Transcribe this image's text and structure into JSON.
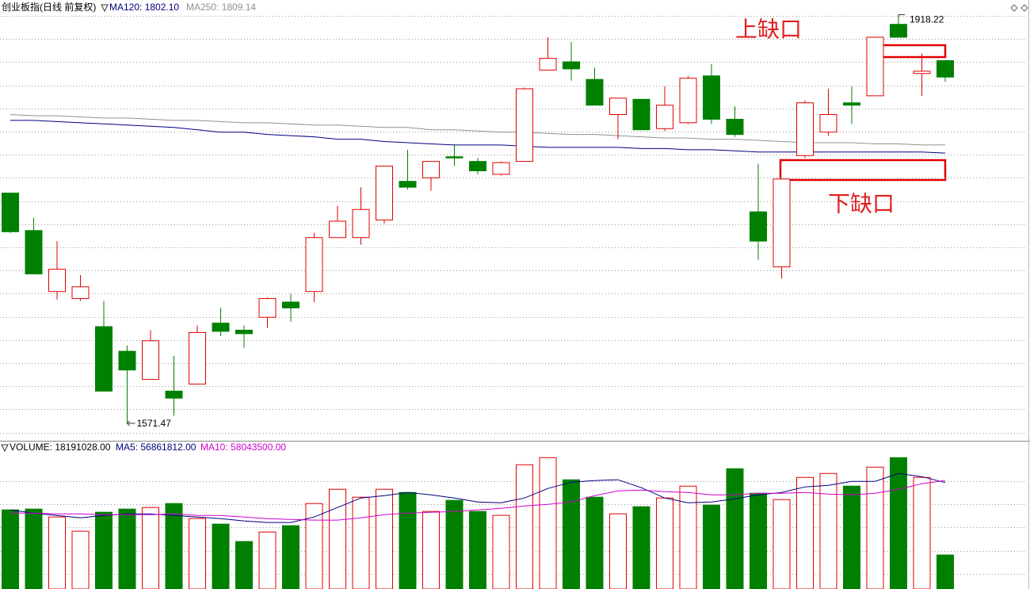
{
  "chart_data": [
    {
      "type": "candlestick",
      "title": "创业板指(日线 前复权)",
      "open": [
        1768,
        1736,
        1684,
        1678,
        1654,
        1633,
        1609,
        1599,
        1605,
        1657,
        1651,
        1662,
        1675,
        1684,
        1730,
        1730,
        1745,
        1778,
        1781,
        1799,
        1795,
        1784,
        1795,
        1873,
        1880,
        1865,
        1835,
        1848,
        1823,
        1828,
        1868,
        1831,
        1752,
        1705,
        1800,
        1820,
        1845,
        1851,
        1912,
        1870,
        1881
      ],
      "high": [
        1768,
        1747,
        1727,
        1698,
        1676,
        1638,
        1651,
        1629,
        1655,
        1670,
        1655,
        1679,
        1682,
        1734,
        1757,
        1773,
        1791,
        1805,
        1795,
        1810,
        1798,
        1795,
        1858,
        1901,
        1897,
        1875,
        1849,
        1848,
        1859,
        1868,
        1878,
        1842,
        1793,
        1780,
        1847,
        1857,
        1859,
        1901,
        1918.22,
        1887,
        1881
      ],
      "low": [
        1734,
        1699,
        1677,
        1676,
        1599,
        1571.47,
        1609,
        1578,
        1605,
        1646,
        1636,
        1653,
        1658,
        1675,
        1730,
        1724,
        1742,
        1771,
        1770,
        1791,
        1784,
        1783,
        1795,
        1873,
        1864,
        1843,
        1814,
        1822,
        1821,
        1827,
        1827,
        1816,
        1711,
        1695,
        1798,
        1817,
        1827,
        1851,
        1901,
        1851,
        1863
      ],
      "close": [
        1735,
        1699,
        1703,
        1688,
        1599,
        1617,
        1642,
        1593,
        1649,
        1650,
        1648,
        1678,
        1670,
        1730,
        1744,
        1754,
        1791,
        1773,
        1795,
        1798,
        1787,
        1794,
        1857,
        1883,
        1874,
        1843,
        1849,
        1822,
        1843,
        1866,
        1831,
        1818,
        1727,
        1780,
        1845,
        1835,
        1843,
        1901,
        1901,
        1872,
        1867
      ],
      "up_color": "#e00000",
      "down_color": "#008000",
      "series": [
        {
          "name": "MA120: 1802.10",
          "color": "#000080",
          "values": [
            1830,
            1830,
            1829,
            1828,
            1827,
            1826,
            1825,
            1824,
            1822,
            1820,
            1820,
            1818,
            1817,
            1816,
            1814,
            1814,
            1812,
            1811,
            1810,
            1809,
            1809,
            1809,
            1808,
            1807,
            1807,
            1807,
            1807,
            1806,
            1806,
            1805,
            1805,
            1804,
            1803,
            1803,
            1803,
            1803,
            1803,
            1803,
            1803,
            1803,
            1802.1
          ]
        },
        {
          "name": "MA250: 1809.14",
          "color": "#909090",
          "values": [
            1835,
            1834,
            1834,
            1833,
            1832,
            1832,
            1831,
            1830,
            1830,
            1829,
            1828,
            1828,
            1827,
            1826,
            1826,
            1825,
            1824,
            1824,
            1822,
            1822,
            1821,
            1820,
            1820,
            1819,
            1818,
            1818,
            1817,
            1816,
            1815,
            1815,
            1814,
            1814,
            1813,
            1812,
            1811,
            1811,
            1811,
            1810,
            1810,
            1809,
            1809.14
          ]
        }
      ],
      "annotations": [
        "上缺口",
        "下缺口"
      ],
      "ylim": [
        1560,
        1926
      ],
      "grid": true
    },
    {
      "type": "bar",
      "up_color": "#e00000",
      "down_color": "#008000",
      "series": [
        {
          "name": "VOLUME: 18191028.00",
          "color": "#000000",
          "values": [
            42300000,
            42723000,
            38493000,
            30879000,
            41031000,
            42723000,
            43569000,
            45684000,
            37647000,
            34686000,
            25380000,
            30456000,
            33840000,
            45684000,
            53298000,
            49068000,
            53298000,
            51606000,
            41454000,
            47376000,
            41454000,
            39339000,
            66411000,
            70218000,
            58374000,
            49068000,
            40185000,
            43992000,
            48645000,
            54990000,
            44838000,
            64296000,
            51183000,
            47799000,
            59643000,
            61758000,
            54990000,
            65142000,
            70218000,
            59643000,
            18191028
          ]
        },
        {
          "name": "MA5: 56861812.00",
          "color": "#000080",
          "values": [
            42300000,
            40608000,
            39339000,
            38070000,
            39339000,
            40185000,
            40185000,
            39339000,
            38493000,
            37647000,
            36378000,
            35532000,
            35532000,
            38493000,
            43569000,
            48645000,
            49914000,
            51606000,
            50337000,
            48645000,
            46530000,
            46107000,
            48645000,
            53721000,
            57105000,
            57951000,
            58374000,
            54144000,
            48645000,
            46107000,
            46530000,
            48222000,
            50337000,
            51606000,
            54567000,
            55413000,
            57528000,
            57528000,
            61758000,
            60066000,
            56861812
          ]
        },
        {
          "name": "MA10: 58043500.00",
          "color": "#d000d0",
          "values": [
            40608000,
            40608000,
            40185000,
            40185000,
            39762000,
            39762000,
            39762000,
            40185000,
            39339000,
            39339000,
            38493000,
            37647000,
            37224000,
            36801000,
            36801000,
            38070000,
            39762000,
            40608000,
            41031000,
            41454000,
            42300000,
            43146000,
            44415000,
            45261000,
            46530000,
            49914000,
            52452000,
            52875000,
            52029000,
            51606000,
            50337000,
            50337000,
            51183000,
            51183000,
            51606000,
            50760000,
            50337000,
            51183000,
            53298000,
            56259000,
            58043500
          ]
        }
      ],
      "ylim": [
        0,
        75000000
      ],
      "grid": true
    }
  ]
}
